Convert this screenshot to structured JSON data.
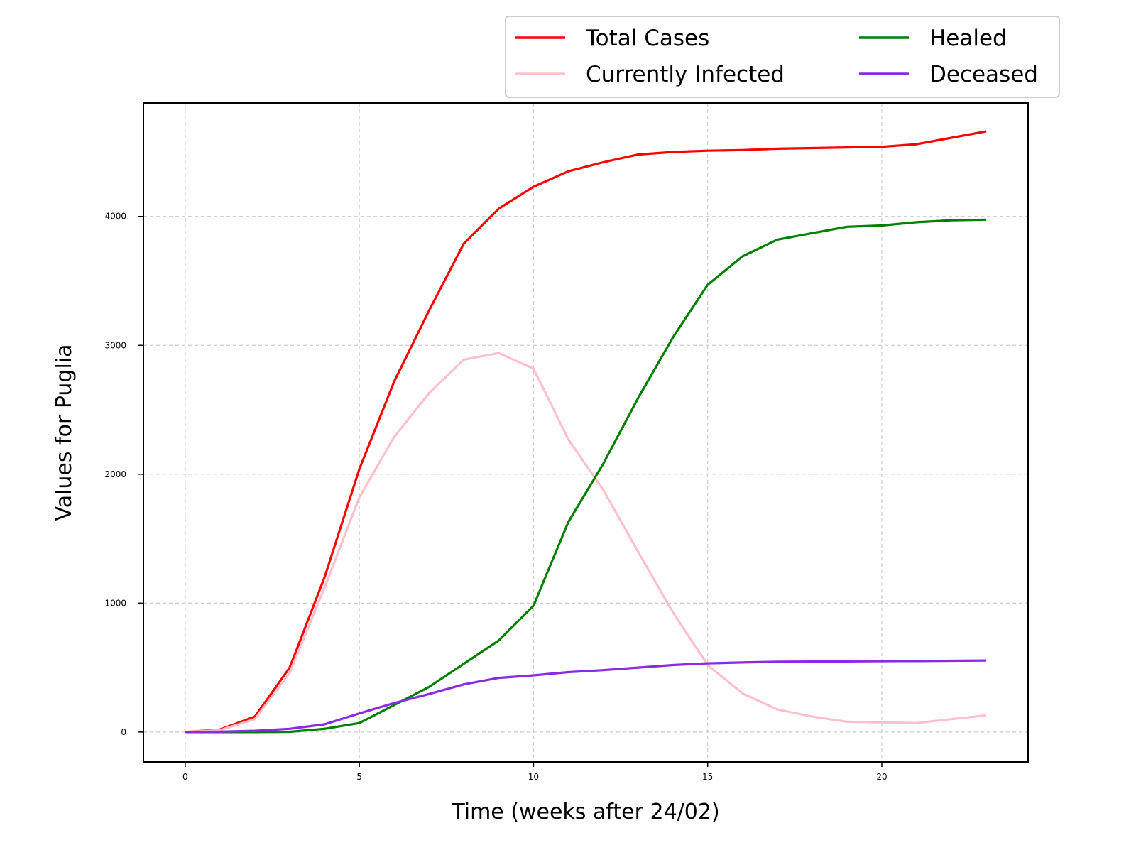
{
  "chart_data": {
    "type": "line",
    "title": "",
    "xlabel": "Time (weeks after 24/02)",
    "ylabel": "Values for Puglia",
    "xlim": [
      -1.2,
      24.2
    ],
    "ylim": [
      -232,
      4880
    ],
    "xticks": [
      0,
      5,
      10,
      15,
      20
    ],
    "yticks": [
      0,
      1000,
      2000,
      3000,
      4000
    ],
    "grid": true,
    "legend_position": "top-right, above plot",
    "x": [
      0,
      1,
      2,
      3,
      4,
      5,
      6,
      7,
      8,
      9,
      10,
      11,
      12,
      13,
      14,
      15,
      16,
      17,
      18,
      19,
      20,
      21,
      22,
      23
    ],
    "series": [
      {
        "name": "Total Cases",
        "color": "#ff0000",
        "values": [
          0,
          20,
          120,
          500,
          1200,
          2040,
          2720,
          3270,
          3790,
          4060,
          4230,
          4350,
          4420,
          4480,
          4500,
          4510,
          4515,
          4525,
          4530,
          4535,
          4540,
          4560,
          4610,
          4660
        ]
      },
      {
        "name": "Currently Infected",
        "color": "#ffc0cb",
        "values": [
          0,
          15,
          100,
          460,
          1120,
          1820,
          2290,
          2630,
          2890,
          2940,
          2820,
          2270,
          1880,
          1400,
          930,
          520,
          300,
          175,
          120,
          80,
          75,
          70,
          100,
          130
        ]
      },
      {
        "name": "Healed",
        "color": "#008000",
        "values": [
          0,
          0,
          0,
          2,
          25,
          70,
          210,
          350,
          530,
          710,
          980,
          1630,
          2080,
          2590,
          3060,
          3470,
          3690,
          3820,
          3870,
          3920,
          3930,
          3955,
          3970,
          3975
        ]
      },
      {
        "name": "Deceased",
        "color": "#8a2be2",
        "values": [
          0,
          3,
          10,
          25,
          60,
          145,
          225,
          295,
          370,
          420,
          440,
          465,
          480,
          500,
          520,
          533,
          540,
          545,
          547,
          548,
          550,
          551,
          553,
          555
        ]
      }
    ]
  }
}
